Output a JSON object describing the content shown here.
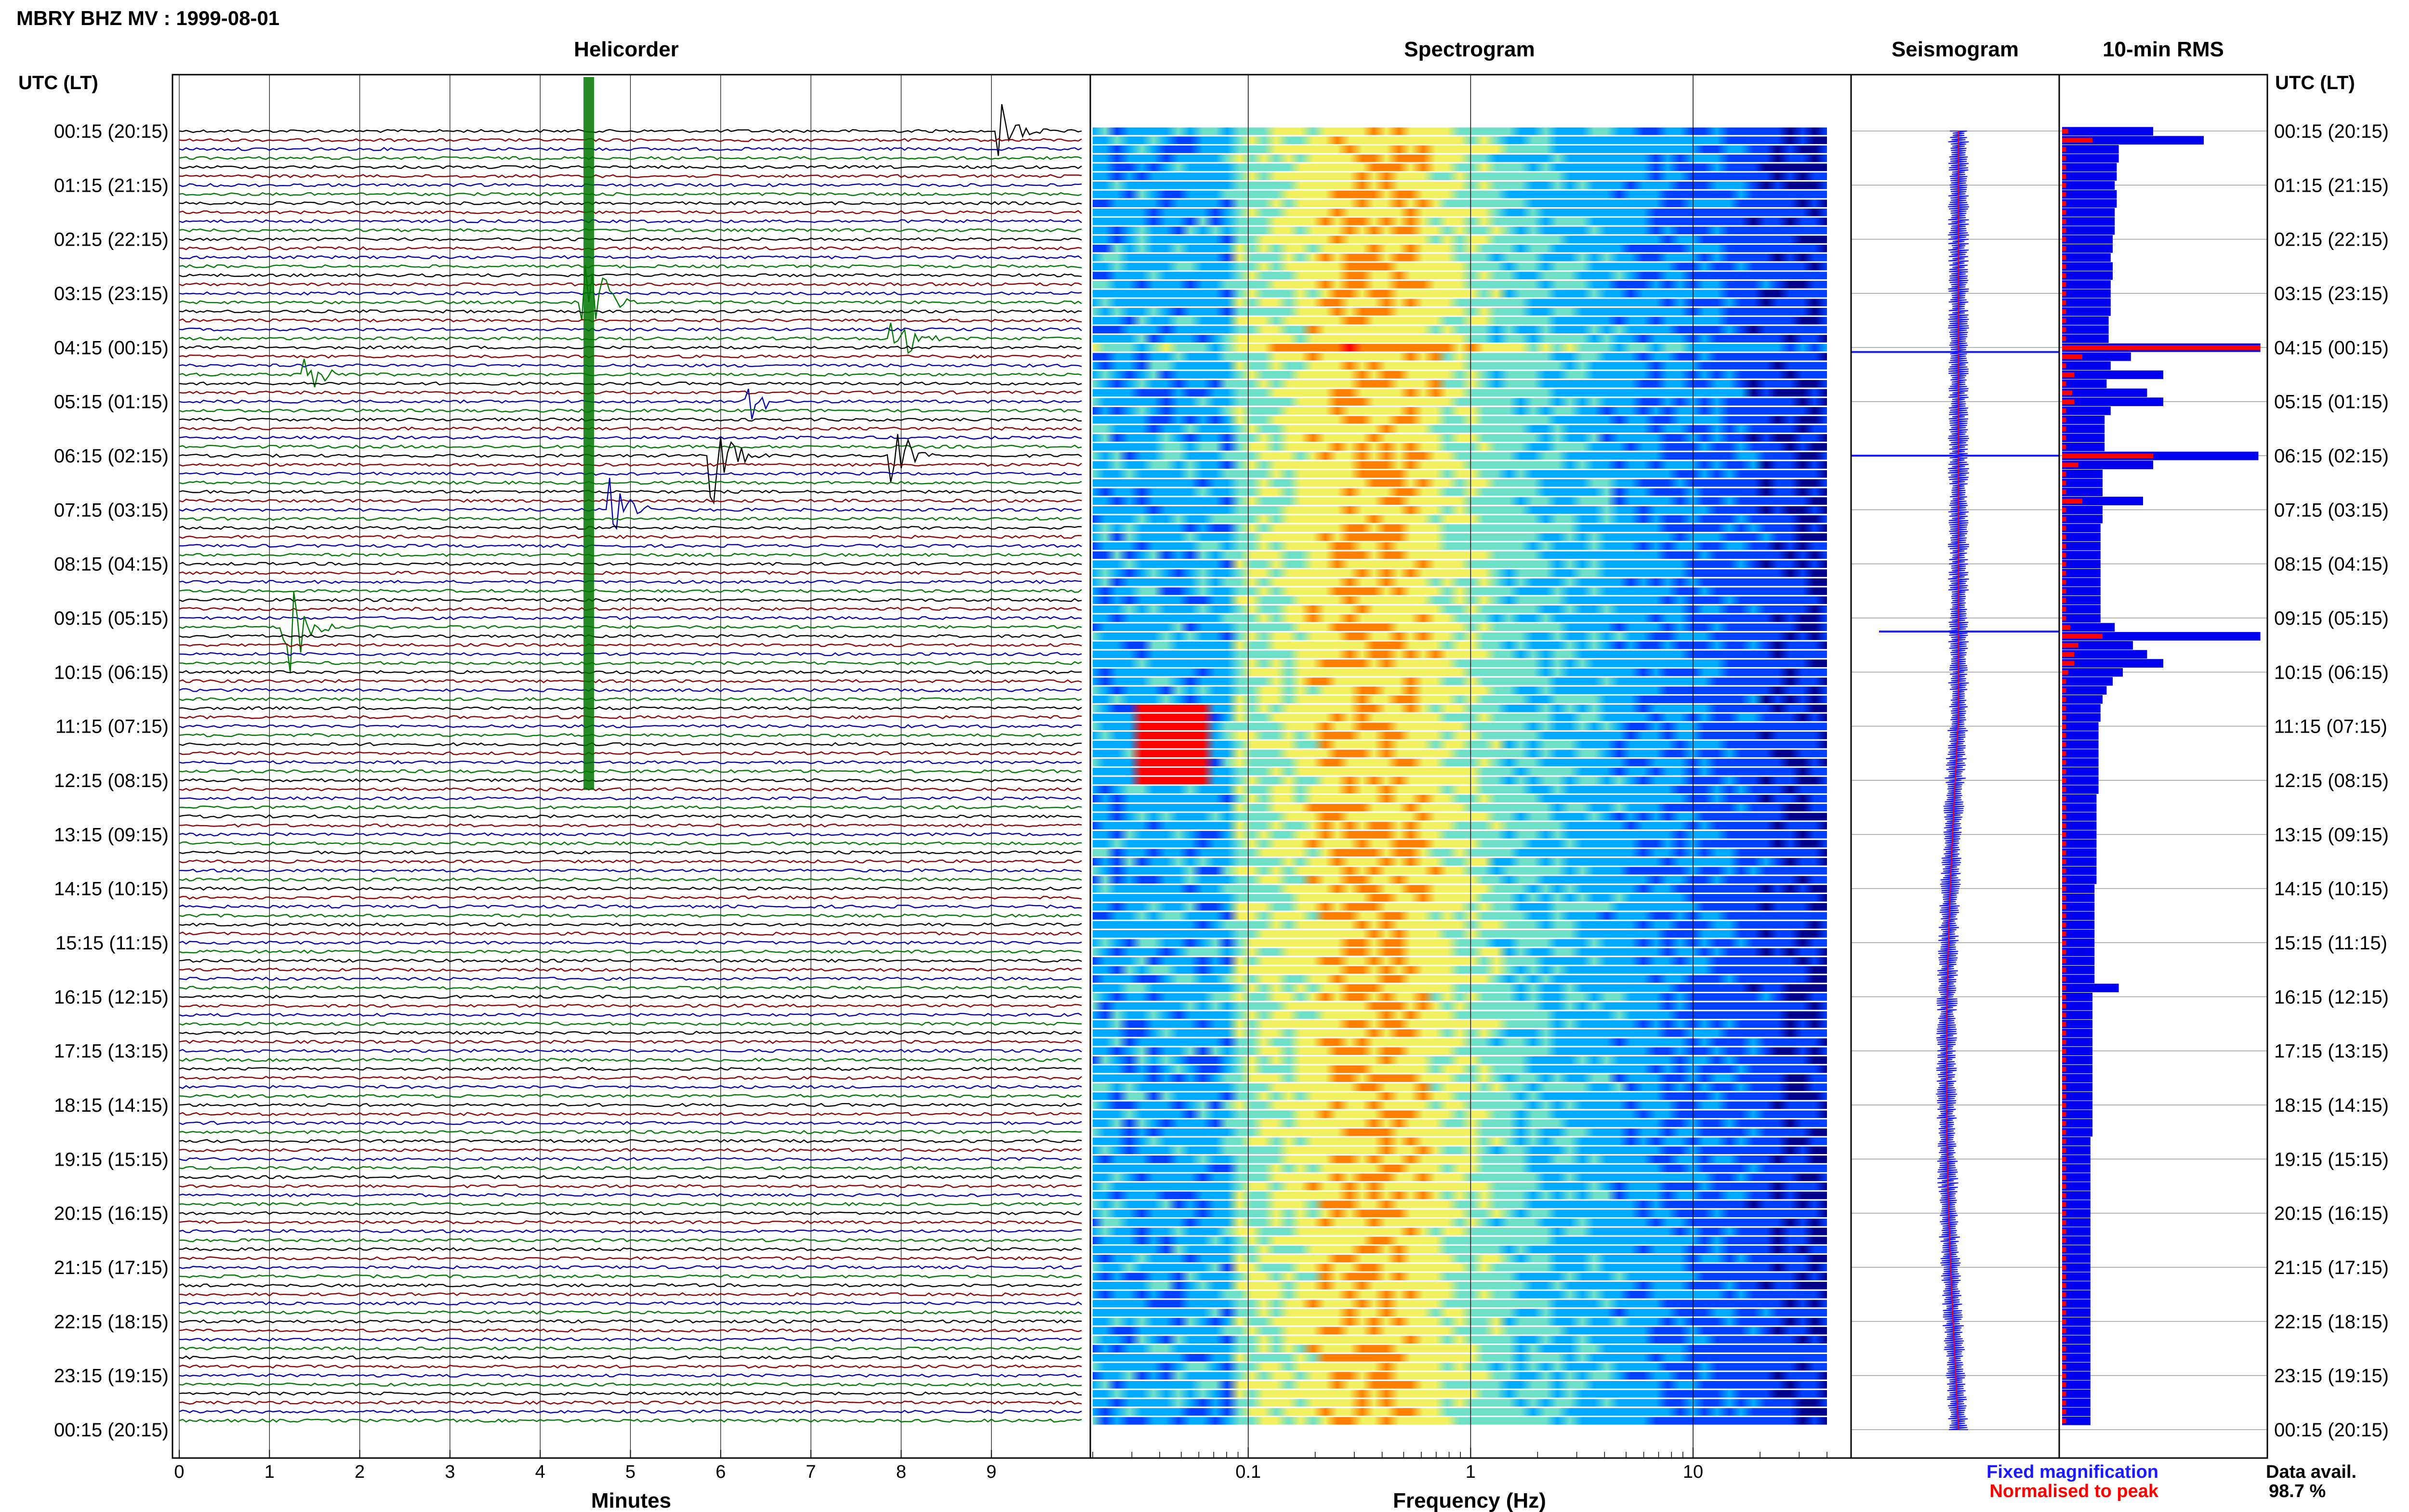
{
  "header": {
    "title": "MBRY BHZ MV : 1999-08-01"
  },
  "panels": {
    "helicorder": "Helicorder",
    "spectrogram": "Spectrogram",
    "seismogram": "Seismogram",
    "rms": "10-min RMS"
  },
  "time_axis": {
    "header": "UTC (LT)",
    "labels": [
      "00:15 (20:15)",
      "01:15 (21:15)",
      "02:15 (22:15)",
      "03:15 (23:15)",
      "04:15 (00:15)",
      "05:15 (01:15)",
      "06:15 (02:15)",
      "07:15 (03:15)",
      "08:15 (04:15)",
      "09:15 (05:15)",
      "10:15 (06:15)",
      "11:15 (07:15)",
      "12:15 (08:15)",
      "13:15 (09:15)",
      "14:15 (10:15)",
      "15:15 (11:15)",
      "16:15 (12:15)",
      "17:15 (13:15)",
      "18:15 (14:15)",
      "19:15 (15:15)",
      "20:15 (16:15)",
      "21:15 (17:15)",
      "22:15 (18:15)",
      "23:15 (19:15)",
      "00:15 (20:15)"
    ]
  },
  "legend": {
    "fixed": "Fixed magnification",
    "normalised": "Normalised to peak",
    "fixed_color": "#1a1aff",
    "normalised_color": "#ff0000"
  },
  "availability": {
    "label": "Data avail.",
    "value": "98.7 %"
  },
  "chart_data": [
    {
      "type": "line",
      "title": "Helicorder",
      "xlabel": "Minutes",
      "xlim": [
        0,
        10
      ],
      "x_ticks": [
        "0",
        "1",
        "2",
        "3",
        "4",
        "5",
        "6",
        "7",
        "8",
        "9"
      ],
      "rows": 144,
      "row_colors": [
        "#000000",
        "#8b0000",
        "#0000aa",
        "#007700"
      ],
      "events": [
        {
          "minute": 9.1,
          "row": 0,
          "amp": 1.6
        },
        {
          "minute": 4.5,
          "row": 19,
          "amp": 5
        },
        {
          "minute": 1.4,
          "row": 27,
          "amp": 1.4
        },
        {
          "minute": 7.9,
          "row": 23,
          "amp": 2.5
        },
        {
          "minute": 5.9,
          "row": 36,
          "amp": 3
        },
        {
          "minute": 7.9,
          "row": 36,
          "amp": 2.2
        },
        {
          "minute": 4.8,
          "row": 42,
          "amp": 1.8
        },
        {
          "minute": 1.2,
          "row": 55,
          "amp": 3.2
        },
        {
          "minute": 6.3,
          "row": 30,
          "amp": 1.2
        }
      ]
    },
    {
      "type": "heatmap",
      "title": "Spectrogram",
      "xlabel": "Frequency (Hz)",
      "x_scale": "log",
      "xlim": [
        0.02,
        40
      ],
      "x_ticks": [
        "0.1",
        "1",
        "10"
      ],
      "colors": [
        "#00008b",
        "#0040ff",
        "#00aaff",
        "#6fe0c8",
        "#f0f060",
        "#ff8000",
        "#ff0000"
      ]
    },
    {
      "type": "line",
      "title": "Seismogram",
      "series": [
        {
          "name": "Fixed magnification",
          "color": "#1a1aff"
        },
        {
          "name": "Normalised to peak",
          "color": "#ff0000"
        }
      ]
    },
    {
      "type": "bar",
      "title": "10-min RMS",
      "orientation": "horizontal",
      "categories_count": 144,
      "blue_values": [
        0.45,
        0.7,
        0.28,
        0.28,
        0.27,
        0.27,
        0.26,
        0.27,
        0.27,
        0.26,
        0.26,
        0.26,
        0.25,
        0.25,
        0.24,
        0.25,
        0.25,
        0.24,
        0.24,
        0.24,
        0.24,
        0.23,
        0.23,
        0.23,
        0.98,
        0.34,
        0.24,
        0.5,
        0.22,
        0.42,
        0.5,
        0.24,
        0.21,
        0.21,
        0.21,
        0.21,
        0.97,
        0.45,
        0.2,
        0.2,
        0.2,
        0.4,
        0.2,
        0.2,
        0.19,
        0.19,
        0.19,
        0.19,
        0.19,
        0.19,
        0.19,
        0.19,
        0.19,
        0.19,
        0.19,
        0.26,
        0.98,
        0.35,
        0.42,
        0.5,
        0.3,
        0.25,
        0.22,
        0.2,
        0.19,
        0.19,
        0.18,
        0.18,
        0.18,
        0.18,
        0.18,
        0.18,
        0.18,
        0.18,
        0.17,
        0.17,
        0.17,
        0.17,
        0.17,
        0.17,
        0.17,
        0.17,
        0.17,
        0.17,
        0.16,
        0.16,
        0.16,
        0.16,
        0.16,
        0.16,
        0.16,
        0.16,
        0.16,
        0.16,
        0.16,
        0.28,
        0.15,
        0.15,
        0.15,
        0.15,
        0.15,
        0.15,
        0.15,
        0.15,
        0.15,
        0.15,
        0.15,
        0.15,
        0.15,
        0.15,
        0.15,
        0.15,
        0.14,
        0.14,
        0.14,
        0.14,
        0.14,
        0.14,
        0.14,
        0.14,
        0.14,
        0.14,
        0.14,
        0.14,
        0.14,
        0.14,
        0.14,
        0.14,
        0.14,
        0.14,
        0.14,
        0.14,
        0.14,
        0.14,
        0.14,
        0.14,
        0.14,
        0.14,
        0.14,
        0.14,
        0.14,
        0.14,
        0.14,
        0.14
      ],
      "red_values": [
        0.03,
        0.15,
        0.02,
        0.02,
        0.02,
        0.02,
        0.02,
        0.02,
        0.02,
        0.02,
        0.02,
        0.02,
        0.02,
        0.02,
        0.02,
        0.02,
        0.02,
        0.02,
        0.02,
        0.02,
        0.02,
        0.02,
        0.02,
        0.02,
        0.98,
        0.1,
        0.02,
        0.06,
        0.02,
        0.05,
        0.06,
        0.02,
        0.02,
        0.02,
        0.02,
        0.02,
        0.45,
        0.08,
        0.02,
        0.02,
        0.02,
        0.1,
        0.02,
        0.02,
        0.02,
        0.02,
        0.02,
        0.02,
        0.02,
        0.02,
        0.02,
        0.02,
        0.02,
        0.02,
        0.02,
        0.04,
        0.2,
        0.08,
        0.06,
        0.06,
        0.03,
        0.02,
        0.02,
        0.02,
        0.02,
        0.02,
        0.02,
        0.02,
        0.02,
        0.02,
        0.02,
        0.02,
        0.02,
        0.02,
        0.02,
        0.02,
        0.02,
        0.02,
        0.02,
        0.02,
        0.02,
        0.02,
        0.02,
        0.02,
        0.02,
        0.02,
        0.02,
        0.02,
        0.02,
        0.02,
        0.02,
        0.02,
        0.02,
        0.02,
        0.02,
        0.02,
        0.02,
        0.02,
        0.02,
        0.02,
        0.02,
        0.02,
        0.02,
        0.02,
        0.02,
        0.02,
        0.02,
        0.02,
        0.02,
        0.02,
        0.02,
        0.02,
        0.02,
        0.02,
        0.02,
        0.02,
        0.02,
        0.02,
        0.02,
        0.02,
        0.02,
        0.02,
        0.02,
        0.02,
        0.02,
        0.02,
        0.02,
        0.02,
        0.02,
        0.02,
        0.02,
        0.02,
        0.02,
        0.02,
        0.02,
        0.02,
        0.02,
        0.02,
        0.02,
        0.02,
        0.02,
        0.02,
        0.02,
        0.02
      ]
    }
  ]
}
